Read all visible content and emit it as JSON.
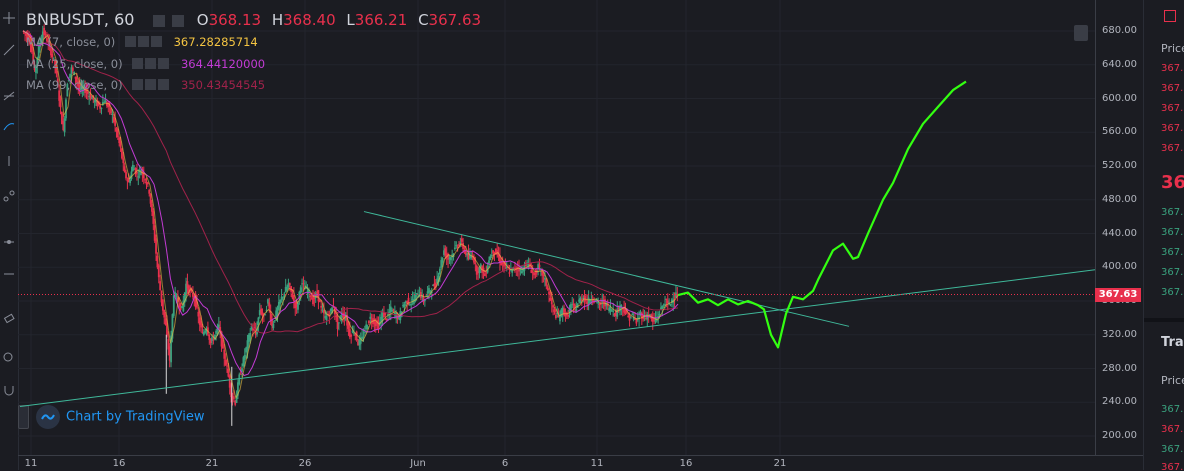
{
  "header": {
    "symbol": "BNBUSDT",
    "interval": "60",
    "open_label": "O",
    "open": "368.13",
    "high_label": "H",
    "high": "368.40",
    "low_label": "L",
    "low": "366.21",
    "close_label": "C",
    "close": "367.63"
  },
  "indicators": [
    {
      "name": "MA (7, close, 0)",
      "value": "367.28285714",
      "color": "#f5c542"
    },
    {
      "name": "MA (25, close, 0)",
      "value": "364.44120000",
      "color": "#c23bd4"
    },
    {
      "name": "MA (99, close, 0)",
      "value": "350.43454545",
      "color": "#a0224a"
    }
  ],
  "watermark": "Chart by TradingView",
  "current_price": "367.63",
  "price_ticks": [
    "680.00",
    "640.00",
    "600.00",
    "560.00",
    "520.00",
    "480.00",
    "440.00",
    "400.00",
    "360.00",
    "320.00",
    "280.00",
    "240.00",
    "200.00"
  ],
  "time_ticks": [
    "11",
    "16",
    "21",
    "26",
    "Jun",
    "6",
    "11",
    "16",
    "21"
  ],
  "right_panel": {
    "price_header": "Price",
    "asks": [
      "367.",
      "367.",
      "367.",
      "367.",
      "367."
    ],
    "last": "36",
    "bids": [
      "367.",
      "367.",
      "367.",
      "367.",
      "367."
    ],
    "trades_header": "Trad",
    "trades_price_header": "Price",
    "trades": [
      {
        "p": "367.",
        "side": "buy"
      },
      {
        "p": "367.",
        "side": "sell"
      },
      {
        "p": "367.",
        "side": "buy"
      },
      {
        "p": "367.",
        "side": "sell"
      }
    ]
  },
  "colors": {
    "up": "#3aa17e",
    "down": "#e8304c",
    "ma7": "#f5c542",
    "ma25": "#c23bd4",
    "ma99": "#a0224a",
    "trendline": "#3fb89a",
    "projection": "#33ff11",
    "price_line": "#e8304c"
  },
  "chart_data": {
    "type": "candlestick",
    "title": "BNBUSDT, 60",
    "xlabel": "",
    "ylabel": "",
    "ylim": [
      190,
      690
    ],
    "x_ticks": [
      "11",
      "16",
      "21",
      "26",
      "Jun",
      "6",
      "11",
      "16",
      "21"
    ],
    "y_ticks": [
      200,
      240,
      280,
      320,
      360,
      400,
      440,
      480,
      520,
      560,
      600,
      640,
      680
    ],
    "price_path": [
      [
        0,
        680
      ],
      [
        1,
        675
      ],
      [
        2,
        668
      ],
      [
        3,
        630
      ],
      [
        4,
        660
      ],
      [
        5,
        680
      ],
      [
        6,
        670
      ],
      [
        7,
        655
      ],
      [
        8,
        640
      ],
      [
        9,
        600
      ],
      [
        10,
        560
      ],
      [
        11,
        620
      ],
      [
        12,
        635
      ],
      [
        13,
        625
      ],
      [
        14,
        610
      ],
      [
        15,
        612
      ],
      [
        16,
        606
      ],
      [
        17,
        600
      ],
      [
        18,
        595
      ],
      [
        19,
        590
      ],
      [
        20,
        598
      ],
      [
        21,
        590
      ],
      [
        22,
        580
      ],
      [
        23,
        560
      ],
      [
        24,
        540
      ],
      [
        25,
        510
      ],
      [
        26,
        500
      ],
      [
        27,
        520
      ],
      [
        28,
        510
      ],
      [
        29,
        515
      ],
      [
        30,
        505
      ],
      [
        31,
        490
      ],
      [
        32,
        450
      ],
      [
        33,
        400
      ],
      [
        34,
        360
      ],
      [
        35,
        330
      ],
      [
        36,
        290
      ],
      [
        37,
        370
      ],
      [
        38,
        360
      ],
      [
        39,
        350
      ],
      [
        40,
        380
      ],
      [
        41,
        370
      ],
      [
        42,
        365
      ],
      [
        43,
        340
      ],
      [
        44,
        320
      ],
      [
        45,
        330
      ],
      [
        46,
        310
      ],
      [
        47,
        320
      ],
      [
        48,
        330
      ],
      [
        49,
        300
      ],
      [
        50,
        280
      ],
      [
        51,
        250
      ],
      [
        52,
        240
      ],
      [
        53,
        270
      ],
      [
        54,
        290
      ],
      [
        55,
        310
      ],
      [
        56,
        330
      ],
      [
        57,
        320
      ],
      [
        58,
        350
      ],
      [
        59,
        340
      ],
      [
        60,
        360
      ],
      [
        61,
        330
      ],
      [
        62,
        345
      ],
      [
        63,
        360
      ],
      [
        64,
        370
      ],
      [
        65,
        380
      ],
      [
        66,
        365
      ],
      [
        67,
        350
      ],
      [
        68,
        380
      ],
      [
        69,
        375
      ],
      [
        70,
        370
      ],
      [
        71,
        360
      ],
      [
        72,
        370
      ],
      [
        73,
        350
      ],
      [
        74,
        340
      ],
      [
        75,
        345
      ],
      [
        76,
        355
      ],
      [
        77,
        330
      ],
      [
        78,
        345
      ],
      [
        79,
        340
      ],
      [
        80,
        320
      ],
      [
        81,
        325
      ],
      [
        82,
        310
      ],
      [
        83,
        315
      ],
      [
        84,
        330
      ],
      [
        85,
        340
      ],
      [
        86,
        335
      ],
      [
        87,
        330
      ],
      [
        88,
        345
      ],
      [
        89,
        340
      ],
      [
        90,
        350
      ],
      [
        91,
        345
      ],
      [
        92,
        340
      ],
      [
        93,
        355
      ],
      [
        94,
        360
      ],
      [
        95,
        358
      ],
      [
        96,
        365
      ],
      [
        97,
        370
      ],
      [
        98,
        360
      ],
      [
        99,
        370
      ],
      [
        100,
        375
      ],
      [
        101,
        380
      ],
      [
        102,
        400
      ],
      [
        103,
        420
      ],
      [
        104,
        410
      ],
      [
        105,
        415
      ],
      [
        106,
        425
      ],
      [
        107,
        430
      ],
      [
        108,
        420
      ],
      [
        109,
        410
      ],
      [
        110,
        415
      ],
      [
        111,
        395
      ],
      [
        112,
        400
      ],
      [
        113,
        390
      ],
      [
        114,
        410
      ],
      [
        115,
        420
      ],
      [
        116,
        415
      ],
      [
        117,
        405
      ],
      [
        118,
        400
      ],
      [
        119,
        395
      ],
      [
        120,
        398
      ],
      [
        121,
        400
      ],
      [
        122,
        395
      ],
      [
        123,
        405
      ],
      [
        124,
        400
      ],
      [
        125,
        390
      ],
      [
        126,
        400
      ],
      [
        127,
        392
      ],
      [
        128,
        380
      ],
      [
        129,
        360
      ],
      [
        130,
        345
      ],
      [
        131,
        340
      ],
      [
        132,
        350
      ],
      [
        133,
        340
      ],
      [
        134,
        355
      ],
      [
        135,
        350
      ],
      [
        136,
        360
      ],
      [
        137,
        365
      ],
      [
        138,
        358
      ],
      [
        139,
        365
      ],
      [
        140,
        360
      ],
      [
        141,
        355
      ],
      [
        142,
        360
      ],
      [
        143,
        352
      ],
      [
        144,
        350
      ],
      [
        145,
        345
      ],
      [
        146,
        355
      ],
      [
        147,
        350
      ],
      [
        148,
        340
      ],
      [
        149,
        342
      ],
      [
        150,
        335
      ],
      [
        151,
        345
      ],
      [
        152,
        340
      ],
      [
        153,
        345
      ],
      [
        154,
        335
      ],
      [
        155,
        340
      ],
      [
        156,
        350
      ],
      [
        157,
        360
      ],
      [
        158,
        355
      ],
      [
        159,
        365
      ],
      [
        160,
        368
      ]
    ],
    "ma7_value": 367.28285714,
    "ma25_value": 364.4412,
    "ma99_value": 350.43454545,
    "current_price": 367.63
  }
}
